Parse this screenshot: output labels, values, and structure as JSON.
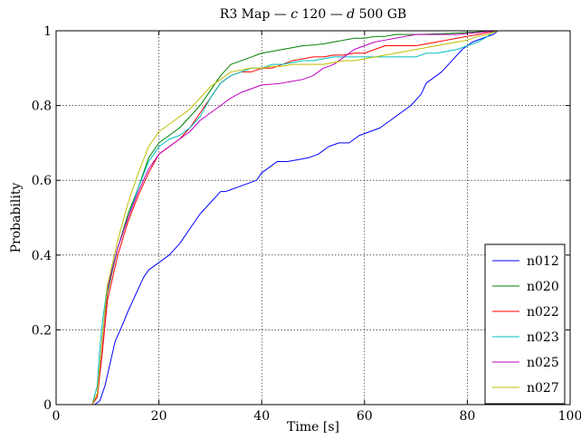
{
  "chart_data": {
    "type": "line",
    "title": "R3 Map — c 120 — d 500 GB",
    "title_parts": [
      "R3 Map — ",
      "c",
      " 120 — ",
      "d",
      " 500 GB"
    ],
    "xlabel": "Time [s]",
    "ylabel": "Probability",
    "xlim": [
      0,
      100
    ],
    "ylim": [
      0,
      1
    ],
    "xticks": [
      0,
      20,
      40,
      60,
      80,
      100
    ],
    "yticks": [
      0,
      0.2,
      0.4,
      0.6,
      0.8,
      1
    ],
    "xtick_labels": [
      "0",
      "20",
      "40",
      "60",
      "80",
      "100"
    ],
    "ytick_labels": [
      "0",
      "0.2",
      "0.4",
      "0.6",
      "0.8",
      "1"
    ],
    "grid": true,
    "legend_position": "bottom-right",
    "series": [
      {
        "name": "n012",
        "color": "#0000ff",
        "x": [
          0,
          7.5,
          8.5,
          9.5,
          10.5,
          11.5,
          12.5,
          14,
          16,
          17,
          18,
          20,
          22,
          24,
          26,
          28,
          30,
          32,
          33,
          35,
          37,
          39,
          40,
          42,
          43,
          45,
          47,
          49,
          51,
          53,
          55,
          57,
          59,
          61,
          63,
          65,
          67,
          69,
          71,
          72,
          73,
          75,
          77,
          79,
          81,
          83,
          85,
          86,
          90,
          93
        ],
        "y": [
          0,
          0,
          0.01,
          0.05,
          0.11,
          0.17,
          0.2,
          0.25,
          0.31,
          0.34,
          0.36,
          0.38,
          0.4,
          0.43,
          0.47,
          0.51,
          0.54,
          0.57,
          0.57,
          0.58,
          0.59,
          0.6,
          0.62,
          0.64,
          0.65,
          0.65,
          0.655,
          0.66,
          0.67,
          0.69,
          0.7,
          0.7,
          0.72,
          0.73,
          0.74,
          0.76,
          0.78,
          0.8,
          0.83,
          0.86,
          0.87,
          0.89,
          0.92,
          0.95,
          0.97,
          0.98,
          0.99,
          1.0,
          1.0,
          1.0
        ]
      },
      {
        "name": "n020",
        "color": "#008000",
        "x": [
          0,
          7,
          8,
          9,
          10,
          12,
          14,
          16,
          18,
          20,
          22,
          24,
          26,
          28,
          30,
          32,
          34,
          36,
          38,
          40,
          42,
          44,
          46,
          48,
          50,
          52,
          54,
          56,
          58,
          60,
          62,
          64,
          66,
          70,
          75,
          80,
          85,
          90,
          93
        ],
        "y": [
          0,
          0,
          0.02,
          0.18,
          0.3,
          0.42,
          0.51,
          0.58,
          0.66,
          0.7,
          0.72,
          0.74,
          0.77,
          0.8,
          0.84,
          0.88,
          0.91,
          0.92,
          0.93,
          0.94,
          0.945,
          0.95,
          0.955,
          0.96,
          0.962,
          0.965,
          0.97,
          0.975,
          0.98,
          0.98,
          0.985,
          0.985,
          0.99,
          0.99,
          0.992,
          0.995,
          1.0,
          1.0,
          1.0
        ]
      },
      {
        "name": "n022",
        "color": "#ff0000",
        "x": [
          0,
          7,
          8,
          9,
          10,
          12,
          14,
          16,
          18,
          20,
          22,
          24,
          26,
          28,
          30,
          32,
          34,
          36,
          38,
          40,
          42,
          44,
          46,
          48,
          50,
          52,
          54,
          56,
          58,
          60,
          62,
          64,
          66,
          68,
          70,
          72,
          74,
          76,
          78,
          80,
          82,
          84,
          86,
          88,
          90
        ],
        "y": [
          0,
          0,
          0.02,
          0.14,
          0.28,
          0.4,
          0.49,
          0.56,
          0.62,
          0.67,
          0.69,
          0.71,
          0.74,
          0.78,
          0.82,
          0.86,
          0.88,
          0.89,
          0.89,
          0.9,
          0.9,
          0.91,
          0.92,
          0.925,
          0.93,
          0.93,
          0.935,
          0.935,
          0.94,
          0.94,
          0.95,
          0.96,
          0.96,
          0.96,
          0.96,
          0.965,
          0.97,
          0.975,
          0.98,
          0.985,
          0.99,
          0.995,
          1.0,
          1.0,
          1.0
        ]
      },
      {
        "name": "n023",
        "color": "#00bfbf",
        "x": [
          0,
          7,
          8,
          8.5,
          9,
          10,
          12,
          14,
          16,
          18,
          20,
          22,
          24,
          26,
          28,
          30,
          32,
          34,
          36,
          38,
          40,
          42,
          44,
          46,
          48,
          50,
          52,
          54,
          56,
          58,
          60,
          62,
          64,
          66,
          68,
          70,
          72,
          74,
          76,
          78,
          80,
          82,
          84,
          85,
          86,
          90
        ],
        "y": [
          0,
          0,
          0.05,
          0.15,
          0.22,
          0.32,
          0.42,
          0.5,
          0.58,
          0.65,
          0.69,
          0.71,
          0.72,
          0.74,
          0.77,
          0.82,
          0.86,
          0.88,
          0.89,
          0.9,
          0.9,
          0.91,
          0.91,
          0.915,
          0.92,
          0.92,
          0.925,
          0.93,
          0.93,
          0.93,
          0.93,
          0.93,
          0.93,
          0.93,
          0.93,
          0.93,
          0.94,
          0.94,
          0.945,
          0.95,
          0.96,
          0.97,
          0.985,
          1.0,
          1.0,
          1.0
        ]
      },
      {
        "name": "n025",
        "color": "#bf00bf",
        "x": [
          0,
          7,
          8,
          9,
          10,
          12,
          14,
          16,
          18,
          20,
          22,
          24,
          26,
          28,
          30,
          32,
          34,
          36,
          38,
          40,
          42,
          44,
          46,
          48,
          50,
          52,
          54,
          56,
          58,
          60,
          62,
          64,
          66,
          68,
          70,
          72,
          74,
          76,
          78,
          80,
          82,
          84,
          86,
          90
        ],
        "y": [
          0,
          0,
          0.03,
          0.17,
          0.31,
          0.42,
          0.5,
          0.57,
          0.63,
          0.67,
          0.69,
          0.71,
          0.73,
          0.76,
          0.78,
          0.8,
          0.82,
          0.835,
          0.845,
          0.855,
          0.857,
          0.86,
          0.865,
          0.87,
          0.88,
          0.9,
          0.91,
          0.93,
          0.95,
          0.96,
          0.97,
          0.975,
          0.98,
          0.985,
          0.99,
          0.99,
          0.99,
          0.99,
          0.99,
          0.993,
          0.995,
          0.998,
          1.0,
          1.0
        ]
      },
      {
        "name": "n027",
        "color": "#bfbf00",
        "x": [
          0,
          7,
          8,
          9,
          10,
          12,
          14,
          16,
          18,
          20,
          22,
          24,
          26,
          28,
          30,
          32,
          34,
          36,
          38,
          40,
          42,
          44,
          46,
          48,
          50,
          52,
          54,
          56,
          58,
          60,
          62,
          64,
          66,
          68,
          70,
          72,
          74,
          76,
          78,
          80,
          82,
          84,
          86,
          90
        ],
        "y": [
          0,
          0,
          0.03,
          0.18,
          0.32,
          0.44,
          0.54,
          0.62,
          0.69,
          0.73,
          0.75,
          0.77,
          0.79,
          0.82,
          0.85,
          0.87,
          0.89,
          0.895,
          0.9,
          0.9,
          0.905,
          0.905,
          0.91,
          0.91,
          0.91,
          0.91,
          0.915,
          0.92,
          0.92,
          0.925,
          0.93,
          0.935,
          0.94,
          0.945,
          0.95,
          0.955,
          0.96,
          0.965,
          0.97,
          0.975,
          0.985,
          0.99,
          1.0,
          1.0
        ]
      }
    ]
  }
}
